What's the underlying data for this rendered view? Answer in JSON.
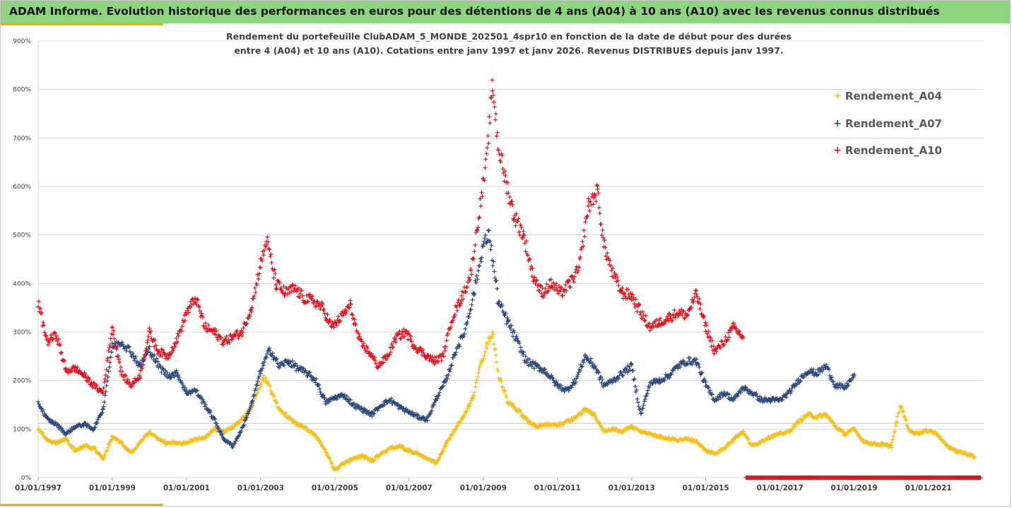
{
  "header": {
    "title": "ADAM Informe. Evolution historique des performances en euros pour des détentions de 4 ans (A04) à 10 ans (A10) avec les revenus connus distribués"
  },
  "colors": {
    "header_bg": "#8cd47e",
    "accent": "#f0b400",
    "A04": "#f5c01f",
    "A07": "#2e4a7d",
    "A10": "#e0141e",
    "grid": "#d9d9d9"
  },
  "chart_data": {
    "type": "scatter",
    "marker": "plus",
    "title_lines": [
      "Rendement du portefeuille ClubADAM_5_MONDE_202501_4spr10  en fonction de la date de début pour des durées",
      "entre 4 (A04) et 10 ans (A10). Cotations entre janv 1997 et janv 2026. Revenus DISTRIBUES depuis janv 1997."
    ],
    "x_axis": {
      "type": "date",
      "range": [
        "1997-01-01",
        "2022-06-30"
      ],
      "tick_labels": [
        "01/01/1997",
        "01/01/1999",
        "01/01/2001",
        "01/01/2003",
        "01/01/2005",
        "01/01/2007",
        "01/01/2009",
        "01/01/2011",
        "01/01/2013",
        "01/01/2015",
        "01/01/2017",
        "01/01/2019",
        "01/01/2021"
      ]
    },
    "y_axis": {
      "range": [
        0,
        900
      ],
      "unit": "%",
      "tick_labels": [
        "0%",
        "100%",
        "200%",
        "300%",
        "400%",
        "500%",
        "600%",
        "700%",
        "800%",
        "900%"
      ]
    },
    "grid": "horizontal",
    "legend_position": "right",
    "series": [
      {
        "name": "Rendement_A04",
        "key": "A04",
        "points": [
          [
            "1997-01",
            100
          ],
          [
            "1997-04",
            78
          ],
          [
            "1997-07",
            72
          ],
          [
            "1997-10",
            80
          ],
          [
            "1998-01",
            55
          ],
          [
            "1998-04",
            65
          ],
          [
            "1998-07",
            62
          ],
          [
            "1998-10",
            38
          ],
          [
            "1999-01",
            85
          ],
          [
            "1999-04",
            72
          ],
          [
            "1999-07",
            50
          ],
          [
            "1999-10",
            72
          ],
          [
            "2000-01",
            95
          ],
          [
            "2000-04",
            78
          ],
          [
            "2000-07",
            70
          ],
          [
            "2000-10",
            72
          ],
          [
            "2001-01",
            72
          ],
          [
            "2001-04",
            80
          ],
          [
            "2001-07",
            82
          ],
          [
            "2001-10",
            100
          ],
          [
            "2002-01",
            95
          ],
          [
            "2002-04",
            105
          ],
          [
            "2002-07",
            120
          ],
          [
            "2002-10",
            145
          ],
          [
            "2003-01",
            195
          ],
          [
            "2003-02",
            210
          ],
          [
            "2003-04",
            185
          ],
          [
            "2003-07",
            140
          ],
          [
            "2003-10",
            125
          ],
          [
            "2004-01",
            110
          ],
          [
            "2004-04",
            100
          ],
          [
            "2004-07",
            85
          ],
          [
            "2004-10",
            55
          ],
          [
            "2005-01",
            15
          ],
          [
            "2005-04",
            30
          ],
          [
            "2005-07",
            40
          ],
          [
            "2005-10",
            45
          ],
          [
            "2006-01",
            35
          ],
          [
            "2006-04",
            50
          ],
          [
            "2006-07",
            60
          ],
          [
            "2006-10",
            65
          ],
          [
            "2007-01",
            55
          ],
          [
            "2007-04",
            50
          ],
          [
            "2007-07",
            38
          ],
          [
            "2007-10",
            30
          ],
          [
            "2008-01",
            70
          ],
          [
            "2008-04",
            100
          ],
          [
            "2008-07",
            130
          ],
          [
            "2008-10",
            170
          ],
          [
            "2008-12",
            230
          ],
          [
            "2009-02",
            270
          ],
          [
            "2009-04",
            300
          ],
          [
            "2009-06",
            210
          ],
          [
            "2009-09",
            155
          ],
          [
            "2009-12",
            140
          ],
          [
            "2010-03",
            120
          ],
          [
            "2010-06",
            105
          ],
          [
            "2010-09",
            110
          ],
          [
            "2011-01",
            108
          ],
          [
            "2011-04",
            115
          ],
          [
            "2011-07",
            125
          ],
          [
            "2011-10",
            140
          ],
          [
            "2012-01",
            130
          ],
          [
            "2012-04",
            95
          ],
          [
            "2012-07",
            100
          ],
          [
            "2012-10",
            95
          ],
          [
            "2013-01",
            105
          ],
          [
            "2013-04",
            95
          ],
          [
            "2013-07",
            90
          ],
          [
            "2013-10",
            85
          ],
          [
            "2014-01",
            80
          ],
          [
            "2014-04",
            78
          ],
          [
            "2014-07",
            80
          ],
          [
            "2014-10",
            75
          ],
          [
            "2015-01",
            55
          ],
          [
            "2015-04",
            50
          ],
          [
            "2015-07",
            60
          ],
          [
            "2015-10",
            80
          ],
          [
            "2016-01",
            95
          ],
          [
            "2016-04",
            65
          ],
          [
            "2016-07",
            75
          ],
          [
            "2016-10",
            85
          ],
          [
            "2017-01",
            90
          ],
          [
            "2017-04",
            95
          ],
          [
            "2017-07",
            115
          ],
          [
            "2017-10",
            130
          ],
          [
            "2018-01",
            125
          ],
          [
            "2018-04",
            130
          ],
          [
            "2018-07",
            105
          ],
          [
            "2018-10",
            90
          ],
          [
            "2019-01",
            100
          ],
          [
            "2019-04",
            75
          ],
          [
            "2019-07",
            70
          ],
          [
            "2019-10",
            68
          ],
          [
            "2020-01",
            65
          ],
          [
            "2020-04",
            150
          ],
          [
            "2020-07",
            95
          ],
          [
            "2020-10",
            92
          ],
          [
            "2021-01",
            98
          ],
          [
            "2021-04",
            90
          ],
          [
            "2021-07",
            65
          ],
          [
            "2021-10",
            55
          ],
          [
            "2022-01",
            50
          ],
          [
            "2022-04",
            42
          ]
        ]
      },
      {
        "name": "Rendement_A07",
        "key": "A07",
        "points": [
          [
            "1997-01",
            155
          ],
          [
            "1997-04",
            120
          ],
          [
            "1997-07",
            110
          ],
          [
            "1997-10",
            90
          ],
          [
            "1998-01",
            105
          ],
          [
            "1998-04",
            110
          ],
          [
            "1998-07",
            100
          ],
          [
            "1998-10",
            140
          ],
          [
            "1999-01",
            270
          ],
          [
            "1999-04",
            280
          ],
          [
            "1999-07",
            260
          ],
          [
            "1999-10",
            230
          ],
          [
            "2000-01",
            265
          ],
          [
            "2000-04",
            230
          ],
          [
            "2000-07",
            210
          ],
          [
            "2000-10",
            215
          ],
          [
            "2001-01",
            175
          ],
          [
            "2001-04",
            180
          ],
          [
            "2001-07",
            150
          ],
          [
            "2001-10",
            120
          ],
          [
            "2002-01",
            80
          ],
          [
            "2002-04",
            65
          ],
          [
            "2002-07",
            100
          ],
          [
            "2002-10",
            150
          ],
          [
            "2003-01",
            220
          ],
          [
            "2003-04",
            265
          ],
          [
            "2003-07",
            230
          ],
          [
            "2003-10",
            240
          ],
          [
            "2004-01",
            225
          ],
          [
            "2004-04",
            215
          ],
          [
            "2004-07",
            200
          ],
          [
            "2004-10",
            155
          ],
          [
            "2005-01",
            165
          ],
          [
            "2005-04",
            170
          ],
          [
            "2005-07",
            150
          ],
          [
            "2005-10",
            140
          ],
          [
            "2006-01",
            130
          ],
          [
            "2006-04",
            150
          ],
          [
            "2006-07",
            160
          ],
          [
            "2006-10",
            145
          ],
          [
            "2007-01",
            135
          ],
          [
            "2007-04",
            125
          ],
          [
            "2007-07",
            120
          ],
          [
            "2007-10",
            165
          ],
          [
            "2008-01",
            200
          ],
          [
            "2008-04",
            260
          ],
          [
            "2008-07",
            300
          ],
          [
            "2008-10",
            380
          ],
          [
            "2009-01",
            480
          ],
          [
            "2009-03",
            500
          ],
          [
            "2009-06",
            360
          ],
          [
            "2009-09",
            320
          ],
          [
            "2009-12",
            280
          ],
          [
            "2010-03",
            240
          ],
          [
            "2010-06",
            230
          ],
          [
            "2010-09",
            220
          ],
          [
            "2011-01",
            190
          ],
          [
            "2011-04",
            180
          ],
          [
            "2011-07",
            200
          ],
          [
            "2011-10",
            250
          ],
          [
            "2012-01",
            230
          ],
          [
            "2012-04",
            190
          ],
          [
            "2012-07",
            200
          ],
          [
            "2012-10",
            215
          ],
          [
            "2013-01",
            230
          ],
          [
            "2013-04",
            130
          ],
          [
            "2013-07",
            195
          ],
          [
            "2013-10",
            200
          ],
          [
            "2014-01",
            210
          ],
          [
            "2014-04",
            230
          ],
          [
            "2014-07",
            240
          ],
          [
            "2014-10",
            240
          ],
          [
            "2015-01",
            190
          ],
          [
            "2015-04",
            160
          ],
          [
            "2015-07",
            175
          ],
          [
            "2015-10",
            160
          ],
          [
            "2016-01",
            185
          ],
          [
            "2016-04",
            175
          ],
          [
            "2016-07",
            160
          ],
          [
            "2016-10",
            160
          ],
          [
            "2017-01",
            160
          ],
          [
            "2017-04",
            175
          ],
          [
            "2017-07",
            200
          ],
          [
            "2017-10",
            220
          ],
          [
            "2018-01",
            215
          ],
          [
            "2018-04",
            230
          ],
          [
            "2018-07",
            190
          ],
          [
            "2018-10",
            185
          ],
          [
            "2019-01",
            210
          ]
        ]
      },
      {
        "name": "Rendement_A10",
        "key": "A10",
        "points": [
          [
            "1997-01",
            360
          ],
          [
            "1997-04",
            280
          ],
          [
            "1997-07",
            295
          ],
          [
            "1997-10",
            220
          ],
          [
            "1998-01",
            225
          ],
          [
            "1998-04",
            210
          ],
          [
            "1998-07",
            190
          ],
          [
            "1998-10",
            175
          ],
          [
            "1999-01",
            310
          ],
          [
            "1999-04",
            215
          ],
          [
            "1999-07",
            190
          ],
          [
            "1999-10",
            210
          ],
          [
            "2000-01",
            300
          ],
          [
            "2000-04",
            260
          ],
          [
            "2000-07",
            250
          ],
          [
            "2000-10",
            285
          ],
          [
            "2001-01",
            340
          ],
          [
            "2001-04",
            370
          ],
          [
            "2001-07",
            310
          ],
          [
            "2001-10",
            300
          ],
          [
            "2002-01",
            280
          ],
          [
            "2002-04",
            290
          ],
          [
            "2002-07",
            300
          ],
          [
            "2002-10",
            350
          ],
          [
            "2003-01",
            440
          ],
          [
            "2003-03",
            490
          ],
          [
            "2003-06",
            400
          ],
          [
            "2003-09",
            380
          ],
          [
            "2003-12",
            390
          ],
          [
            "2004-03",
            370
          ],
          [
            "2004-06",
            365
          ],
          [
            "2004-09",
            350
          ],
          [
            "2004-12",
            310
          ],
          [
            "2005-03",
            330
          ],
          [
            "2005-06",
            355
          ],
          [
            "2005-09",
            280
          ],
          [
            "2005-12",
            260
          ],
          [
            "2006-03",
            230
          ],
          [
            "2006-06",
            250
          ],
          [
            "2006-09",
            290
          ],
          [
            "2006-12",
            300
          ],
          [
            "2007-03",
            270
          ],
          [
            "2007-06",
            255
          ],
          [
            "2007-09",
            240
          ],
          [
            "2007-12",
            250
          ],
          [
            "2008-03",
            330
          ],
          [
            "2008-06",
            370
          ],
          [
            "2008-09",
            420
          ],
          [
            "2008-12",
            560
          ],
          [
            "2009-02",
            650
          ],
          [
            "2009-04",
            810
          ],
          [
            "2009-06",
            680
          ],
          [
            "2009-08",
            620
          ],
          [
            "2009-11",
            540
          ],
          [
            "2010-02",
            500
          ],
          [
            "2010-05",
            420
          ],
          [
            "2010-08",
            380
          ],
          [
            "2010-11",
            400
          ],
          [
            "2011-02",
            380
          ],
          [
            "2011-05",
            400
          ],
          [
            "2011-08",
            430
          ],
          [
            "2011-11",
            560
          ],
          [
            "2012-02",
            590
          ],
          [
            "2012-04",
            480
          ],
          [
            "2012-07",
            420
          ],
          [
            "2012-10",
            380
          ],
          [
            "2013-01",
            375
          ],
          [
            "2013-04",
            340
          ],
          [
            "2013-07",
            310
          ],
          [
            "2013-10",
            320
          ],
          [
            "2014-01",
            330
          ],
          [
            "2014-04",
            340
          ],
          [
            "2014-07",
            335
          ],
          [
            "2014-10",
            380
          ],
          [
            "2015-01",
            310
          ],
          [
            "2015-04",
            260
          ],
          [
            "2015-07",
            280
          ],
          [
            "2015-10",
            310
          ],
          [
            "2016-01",
            290
          ]
        ],
        "zero_points_range": [
          "2016-02",
          "2022-06"
        ]
      }
    ]
  }
}
